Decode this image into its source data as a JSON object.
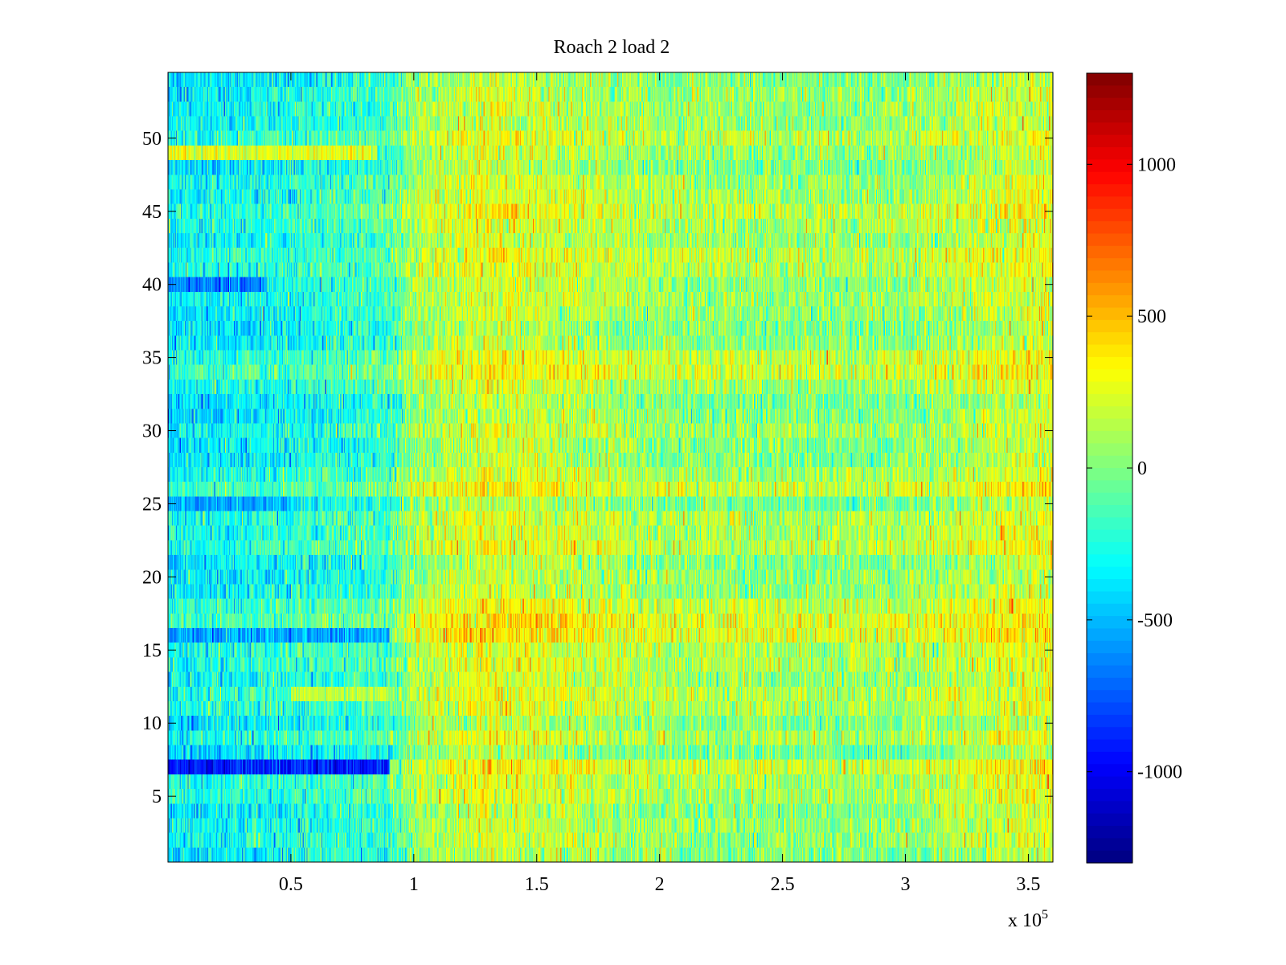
{
  "chart_data": {
    "type": "heatmap",
    "title": "Roach 2 load 2",
    "xlabel": "",
    "ylabel": "",
    "x_exponent_label": "x 10",
    "x_exponent_power": "5",
    "xlim": [
      0,
      3.6
    ],
    "ylim": [
      0.5,
      54.5
    ],
    "x_ticks": [
      0.5,
      1,
      1.5,
      2,
      2.5,
      3,
      3.5
    ],
    "x_tick_labels": [
      "0.5",
      "1",
      "1.5",
      "2",
      "2.5",
      "3",
      "3.5"
    ],
    "y_ticks": [
      5,
      10,
      15,
      20,
      25,
      30,
      35,
      40,
      45,
      50
    ],
    "y_tick_labels": [
      "5",
      "10",
      "15",
      "20",
      "25",
      "30",
      "35",
      "40",
      "45",
      "50"
    ],
    "rows": 54,
    "colorbar": {
      "colormap": "jet",
      "clim": [
        -1300,
        1300
      ],
      "ticks": [
        1000,
        500,
        0,
        -500,
        -1000
      ],
      "tick_labels": [
        "1000",
        "500",
        "0",
        "-500",
        "-1000"
      ]
    },
    "mean_profile_x": [
      0.0,
      0.5,
      0.9,
      1.0,
      1.3,
      1.5,
      2.0,
      2.5,
      3.0,
      3.3,
      3.6
    ],
    "mean_profile_values": [
      -350,
      -250,
      -150,
      100,
      250,
      200,
      80,
      60,
      60,
      180,
      250
    ],
    "row_anomalies": [
      {
        "row": 7,
        "x_range": [
          0.0,
          0.9
        ],
        "value": -900
      },
      {
        "row": 49,
        "x_range": [
          0.0,
          0.85
        ],
        "value": 250
      },
      {
        "row": 40,
        "x_range": [
          0.0,
          0.4
        ],
        "value": -650
      },
      {
        "row": 16,
        "x_range": [
          0.0,
          0.9
        ],
        "value": -550
      },
      {
        "row": 12,
        "x_range": [
          0.5,
          0.9
        ],
        "value": 150
      },
      {
        "row": 25,
        "x_range": [
          0.0,
          0.5
        ],
        "value": -550
      }
    ],
    "grid": false
  }
}
